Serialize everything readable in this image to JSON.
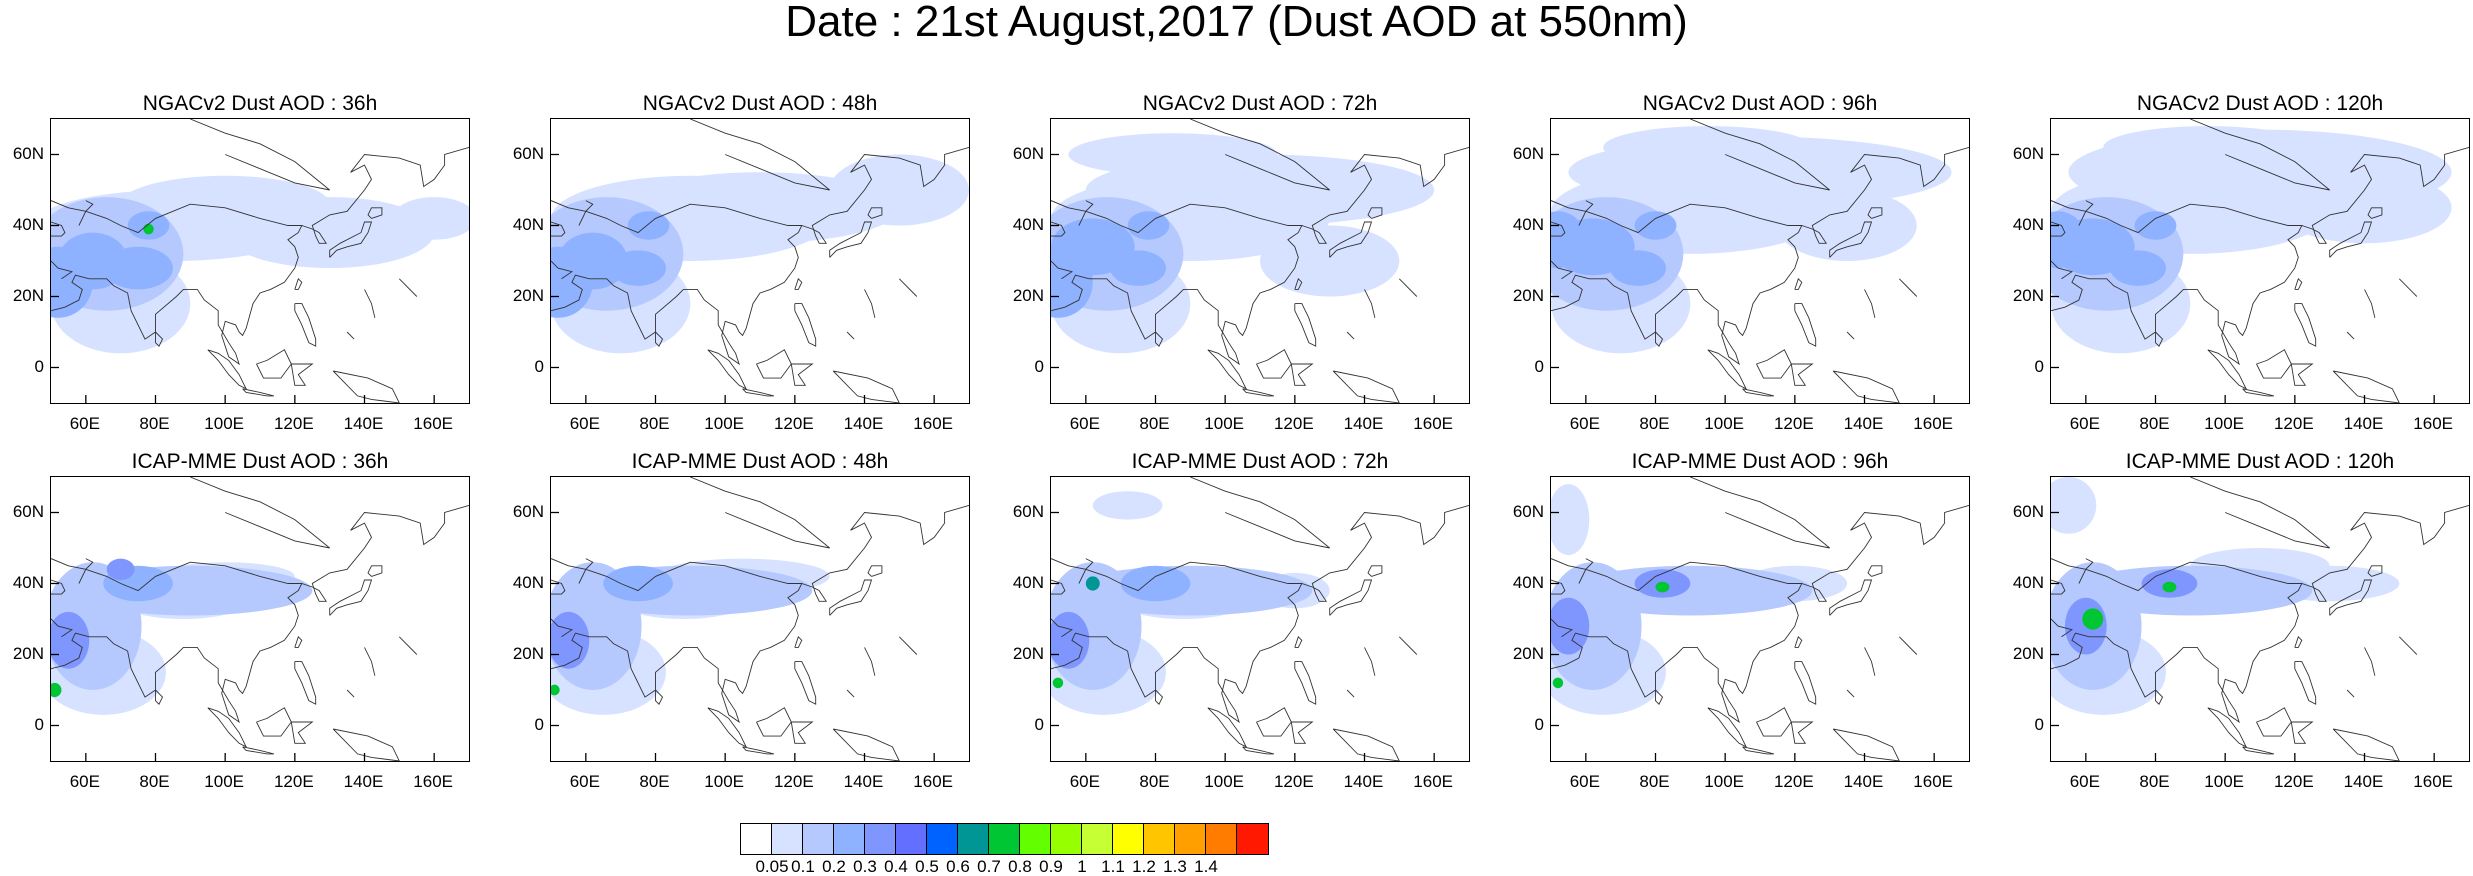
{
  "title": "Date : 21st August,2017 (Dust AOD at 550nm)",
  "rows": [
    {
      "panels": [
        {
          "title": "NGACv2 Dust AOD : 36h"
        },
        {
          "title": "NGACv2 Dust AOD : 48h"
        },
        {
          "title": "NGACv2 Dust AOD : 72h"
        },
        {
          "title": "NGACv2 Dust AOD : 96h"
        },
        {
          "title": "NGACv2 Dust AOD : 120h"
        }
      ]
    },
    {
      "panels": [
        {
          "title": "ICAP-MME Dust AOD : 36h"
        },
        {
          "title": "ICAP-MME Dust AOD : 48h"
        },
        {
          "title": "ICAP-MME Dust AOD : 72h"
        },
        {
          "title": "ICAP-MME Dust AOD : 96h"
        },
        {
          "title": "ICAP-MME Dust AOD : 120h"
        }
      ]
    }
  ],
  "lat_ticks": [
    "60N",
    "40N",
    "20N",
    "0"
  ],
  "lon_ticks": [
    "60E",
    "80E",
    "100E",
    "120E",
    "140E",
    "160E"
  ],
  "colorbar": {
    "labels": [
      "0.05",
      "0.1",
      "0.2",
      "0.3",
      "0.4",
      "0.5",
      "0.6",
      "0.7",
      "0.8",
      "0.9",
      "1",
      "1.1",
      "1.2",
      "1.3",
      "1.4"
    ],
    "colors": [
      "#ffffff",
      "#d6e2ff",
      "#b5c9ff",
      "#8eb2ff",
      "#7f96ff",
      "#6370ff",
      "#0063ff",
      "#009696",
      "#00c633",
      "#63ff00",
      "#96ff00",
      "#c6ff33",
      "#ffff00",
      "#ffc600",
      "#ffa000",
      "#ff7c00",
      "#ff1900"
    ]
  }
}
